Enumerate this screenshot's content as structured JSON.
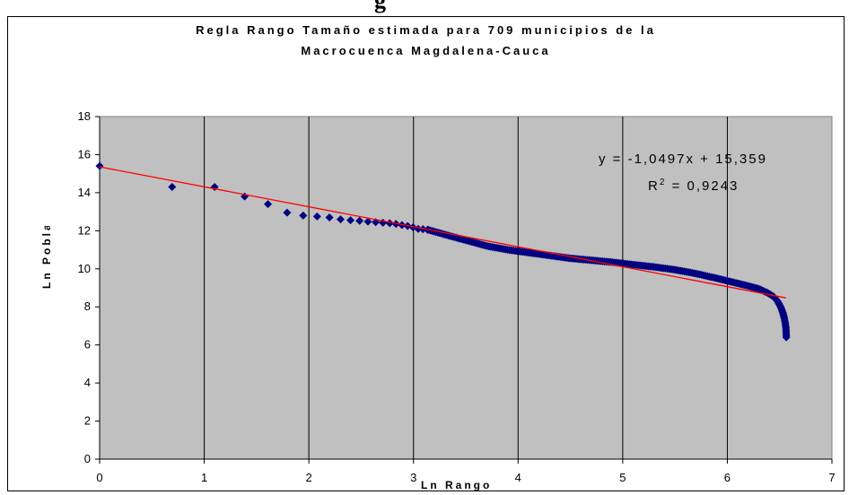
{
  "page": {
    "top_text": "g"
  },
  "chart_data": {
    "type": "scatter",
    "title": "Regla Rango Tamaño estimada para 709 municipios de la Macrocuenca Magdalena-Cauca",
    "title_lines": [
      "Regla Rango Tamaño estimada para 709 municipios de la",
      "Macrocuenca Magdalena-Cauca"
    ],
    "xlabel": "Ln Rango",
    "ylabel": "Ln Población",
    "ylabel_shown": "Ln Poblacio",
    "xlim": [
      0,
      7
    ],
    "ylim": [
      0,
      18
    ],
    "x_ticks": [
      "0",
      "1",
      "2",
      "3",
      "4",
      "5",
      "6",
      "7"
    ],
    "y_ticks": [
      "0",
      "2",
      "4",
      "6",
      "8",
      "10",
      "12",
      "14",
      "16",
      "18"
    ],
    "grid": "vertical",
    "legend": "none",
    "plot_background": "#c0c0c0",
    "marker": {
      "shape": "diamond",
      "color": "#000080"
    },
    "series": [
      {
        "x": [
          0,
          0.693,
          1.099,
          1.386,
          1.609,
          1.792,
          1.946,
          2.079,
          2.197,
          2.303,
          2.398,
          2.485,
          2.565,
          2.639,
          2.708,
          2.773,
          2.833,
          2.89,
          2.944,
          2.996,
          3.045,
          3.091,
          3.135
        ],
        "y": [
          15.4,
          14.3,
          14.3,
          13.8,
          13.4,
          12.95,
          12.8,
          12.75,
          12.7,
          12.6,
          12.55,
          12.52,
          12.48,
          12.45,
          12.42,
          12.4,
          12.36,
          12.3,
          12.25,
          12.18,
          12.1,
          12.08,
          12.05
        ]
      },
      {
        "curve": "dense",
        "x": [
          3.14,
          3.3,
          3.5,
          3.7,
          3.9,
          4.1,
          4.3,
          4.5,
          4.7,
          4.9,
          5.1,
          5.3,
          5.5,
          5.7,
          5.9,
          6.05,
          6.2,
          6.3,
          6.38,
          6.44,
          6.48,
          6.51,
          6.53,
          6.545,
          6.555,
          6.56,
          6.564
        ],
        "y": [
          12.05,
          11.8,
          11.5,
          11.2,
          11.0,
          10.85,
          10.7,
          10.55,
          10.45,
          10.35,
          10.22,
          10.1,
          9.95,
          9.75,
          9.5,
          9.3,
          9.1,
          8.95,
          8.75,
          8.55,
          8.3,
          8.0,
          7.7,
          7.4,
          7.1,
          6.9,
          6.4
        ]
      }
    ],
    "trendline": {
      "type": "linear",
      "color": "#ff0000",
      "slope": -1.0497,
      "intercept": 15.359,
      "x_range": [
        0,
        6.56
      ],
      "equation": "y = -1,0497x + 15,359",
      "r2_label": "R",
      "r2_exp": "2",
      "r2_value": "= 0,9243"
    }
  }
}
